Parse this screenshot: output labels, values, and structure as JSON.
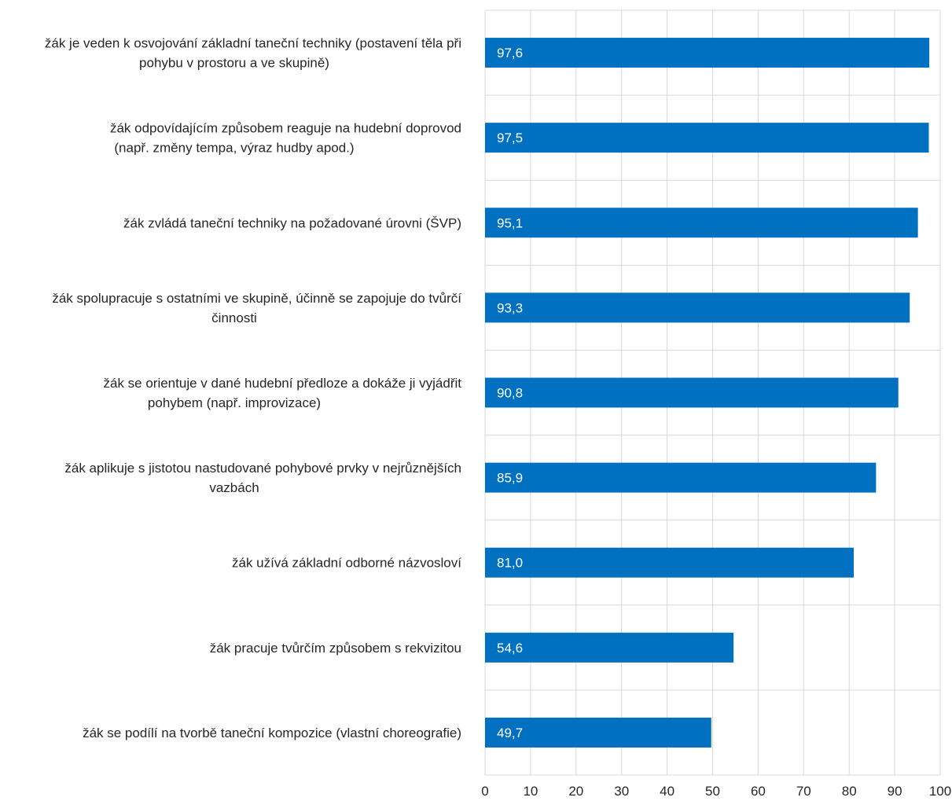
{
  "chart_data": {
    "type": "bar",
    "orientation": "horizontal",
    "categories": [
      [
        "žák je veden k osvojování základní taneční techniky (postavení těla při",
        "pohybu v prostoru  a ve skupině)"
      ],
      [
        "žák odpovídajícím  způsobem  reaguje na hudební  doprovod",
        "(např. změny tempa,  výraz hudby apod.)"
      ],
      [
        "žák zvládá taneční techniky  na požadované úrovni (ŠVP)"
      ],
      [
        "žák spolupracuje s ostatními ve skupině,  účinně se zapojuje  do tvůrčí",
        "činnosti"
      ],
      [
        "žák se orientuje v dané hudební  předloze  a dokáže ji vyjádřit",
        "pohybem (např. improvizace)"
      ],
      [
        "žák aplikuje s jistotou  nastudované pohybové  prvky v nejrůznějších",
        "vazbách"
      ],
      [
        "žák užívá základní odborné názvosloví"
      ],
      [
        "žák pracuje tvůrčím  způsobem s rekvizitou"
      ],
      [
        "žák se podílí na tvorbě taneční kompozice  (vlastní choreografie)"
      ]
    ],
    "values": [
      97.6,
      97.5,
      95.1,
      93.3,
      90.8,
      85.9,
      81.0,
      54.6,
      49.7
    ],
    "data_labels": [
      "97,6",
      "97,5",
      "95,1",
      "93,3",
      "90,8",
      "85,9",
      "81,0",
      "54,6",
      "49,7"
    ],
    "xlim": [
      0,
      100
    ],
    "xticks": [
      0,
      10,
      20,
      30,
      40,
      50,
      60,
      70,
      80,
      90,
      100
    ],
    "grid": true,
    "bar_color": "#0070c0",
    "label_color": "#ffffff"
  }
}
